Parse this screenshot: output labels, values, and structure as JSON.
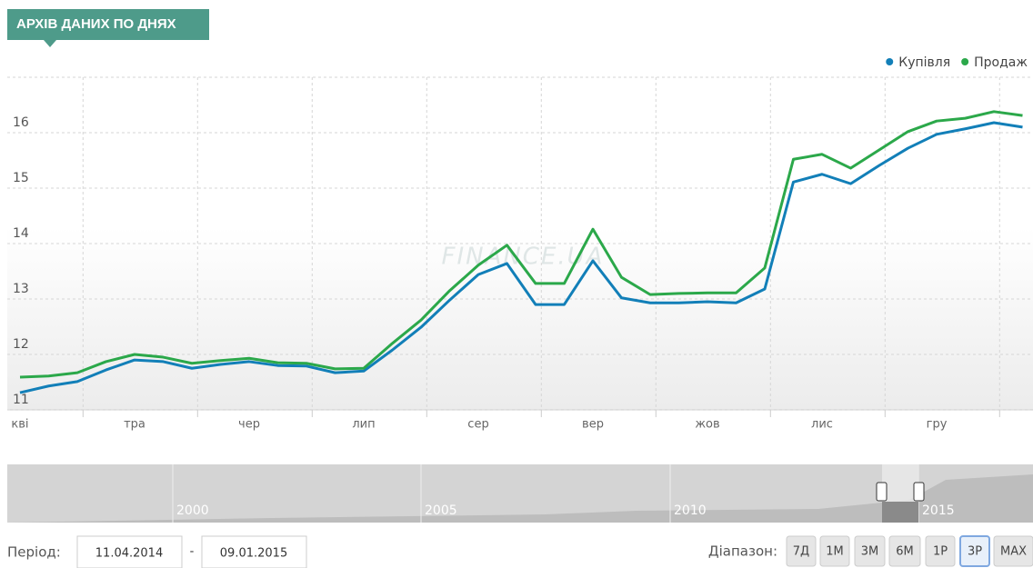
{
  "header": {
    "title": "АРХІВ ДАНИХ ПО ДНЯХ"
  },
  "chart_data": {
    "type": "line",
    "watermark": "FINANCE.UA",
    "categories": [
      "кві",
      null,
      null,
      null,
      "тра",
      null,
      null,
      null,
      "чер",
      null,
      null,
      null,
      "лип",
      null,
      null,
      null,
      "сер",
      null,
      null,
      null,
      "вер",
      null,
      null,
      null,
      "жов",
      null,
      null,
      null,
      "лис",
      null,
      null,
      null,
      "гру",
      null,
      null,
      null
    ],
    "series": [
      {
        "name": "Купівля",
        "color": "#127fb8",
        "values": [
          11.31,
          11.43,
          11.51,
          11.72,
          11.9,
          11.87,
          11.75,
          11.82,
          11.87,
          11.8,
          11.79,
          11.67,
          11.7,
          12.08,
          12.49,
          12.98,
          13.44,
          13.64,
          12.9,
          12.9,
          13.69,
          13.02,
          12.93,
          12.93,
          12.95,
          12.93,
          13.18,
          15.11,
          15.25,
          15.08,
          15.41,
          15.72,
          15.97,
          16.07,
          16.18,
          16.1
        ]
      },
      {
        "name": "Продаж",
        "color": "#2ba84a",
        "values": [
          11.59,
          11.61,
          11.67,
          11.87,
          12.0,
          11.95,
          11.84,
          11.89,
          11.93,
          11.85,
          11.84,
          11.74,
          11.75,
          12.2,
          12.62,
          13.15,
          13.61,
          13.97,
          13.28,
          13.28,
          14.26,
          13.39,
          13.08,
          13.1,
          13.11,
          13.11,
          13.56,
          15.52,
          15.61,
          15.36,
          15.69,
          16.02,
          16.21,
          16.26,
          16.38,
          16.31
        ]
      }
    ],
    "ylim": [
      11,
      17
    ],
    "yticks": [
      11,
      12,
      13,
      14,
      15,
      16
    ],
    "grid": true,
    "legend": "top-right"
  },
  "navigator": {
    "labels": [
      "2000",
      "2005",
      "2010",
      "2015"
    ]
  },
  "controls": {
    "period_label": "Період:",
    "from": "11.04.2014",
    "separator": "-",
    "to": "09.01.2015",
    "range_label": "Діапазон:",
    "buttons": [
      "7Д",
      "1М",
      "3М",
      "6М",
      "1Р",
      "3Р",
      "MAX"
    ],
    "active": 5
  }
}
